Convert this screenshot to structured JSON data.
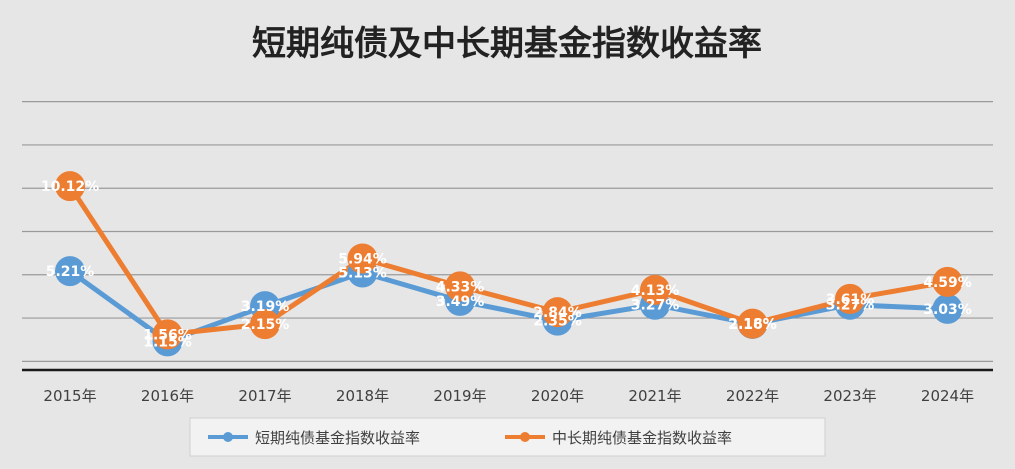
{
  "chart_data": {
    "type": "line",
    "title": "短期纯债及中长期基金指数收益率",
    "categories": [
      "2015年",
      "2016年",
      "2017年",
      "2018年",
      "2019年",
      "2020年",
      "2021年",
      "2022年",
      "2023年",
      "2024年"
    ],
    "series": [
      {
        "name": "短期纯债基金指数收益率",
        "color": "#5b9bd5",
        "values": [
          5.21,
          1.15,
          3.19,
          5.13,
          3.49,
          2.35,
          3.27,
          2.16,
          3.27,
          3.03
        ],
        "labels": [
          "5.21%",
          "1.15%",
          "3.19%",
          "5.13%",
          "3.49%",
          "2.35%",
          "3.27%",
          "2.16%",
          "3.27%",
          "3.03%"
        ]
      },
      {
        "name": "中长期纯债基金指数收益率",
        "color": "#ed7d31",
        "values": [
          10.12,
          1.56,
          2.15,
          5.94,
          4.33,
          2.84,
          4.13,
          2.18,
          3.61,
          4.59
        ],
        "labels": [
          "10.12%",
          "1.56%",
          "2.15%",
          "5.94%",
          "4.33%",
          "2.84%",
          "4.13%",
          "2.18%",
          "3.61%",
          "4.59%"
        ]
      }
    ],
    "ylim": [
      -0.5,
      15.5
    ],
    "grid": true,
    "legend_position": "bottom"
  }
}
